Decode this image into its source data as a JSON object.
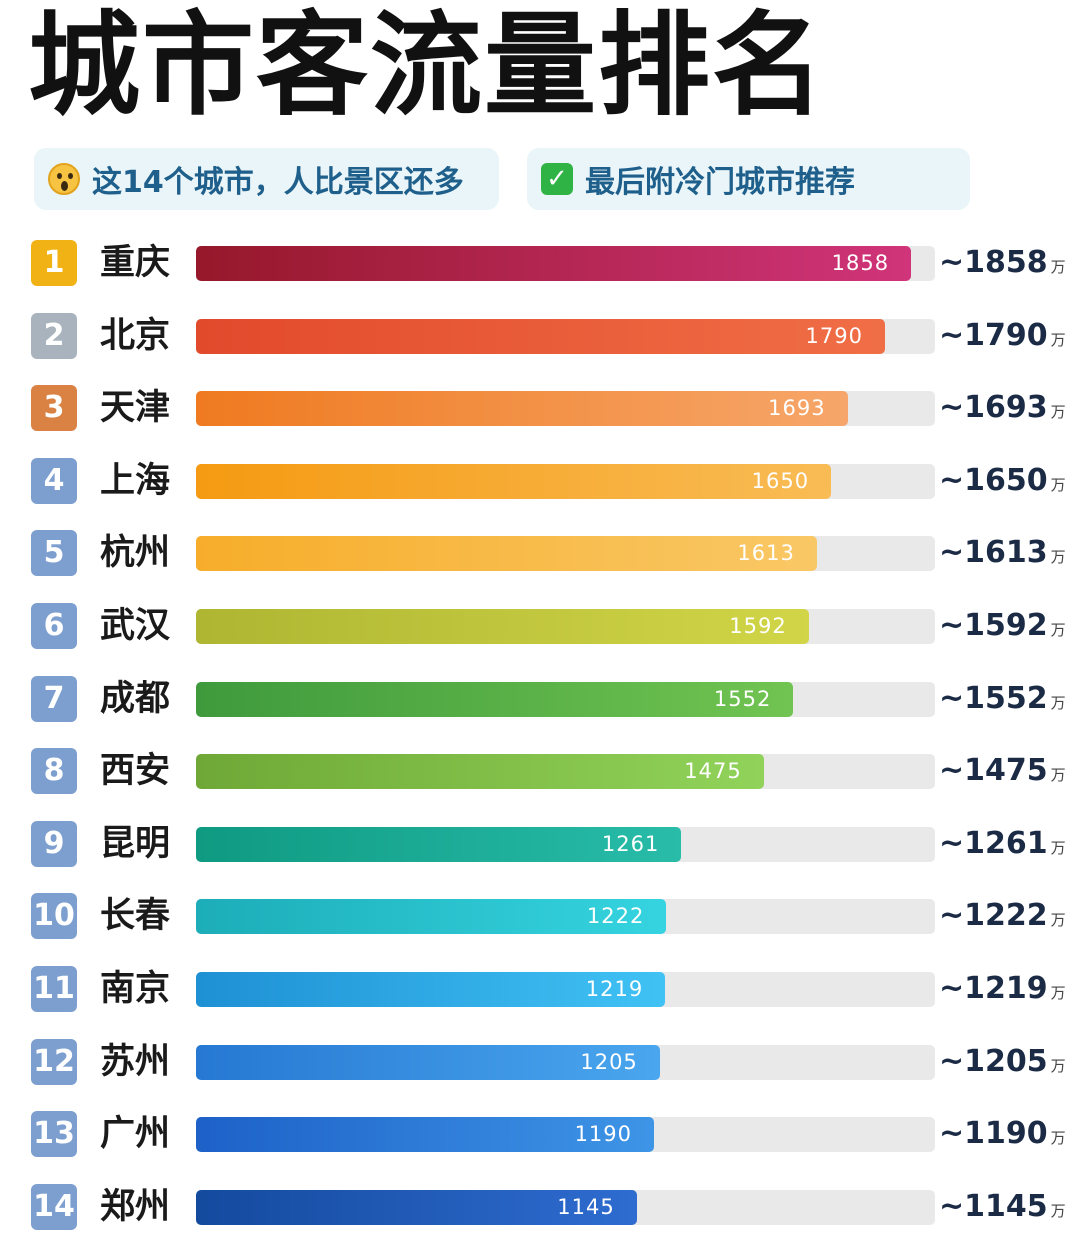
{
  "title": "城市客流量排名",
  "tags": [
    {
      "icon": "scream-emoji-icon",
      "text": "这14个城市，人比景区还多"
    },
    {
      "icon": "check-mark-icon",
      "text": "最后附冷门城市推荐"
    }
  ],
  "chart_data": {
    "type": "bar",
    "title": "城市客流量排名",
    "unit": "万",
    "value_prefix": "~",
    "xlim": [
      0,
      1920
    ],
    "categories": [
      "重庆",
      "北京",
      "天津",
      "上海",
      "杭州",
      "武汉",
      "成都",
      "西安",
      "昆明",
      "长春",
      "南京",
      "苏州",
      "广州",
      "郑州"
    ],
    "ranks": [
      "1",
      "2",
      "3",
      "4",
      "5",
      "6",
      "7",
      "8",
      "9",
      "10",
      "11",
      "12",
      "13",
      "14"
    ],
    "series": [
      {
        "values": [
          1858,
          1790,
          1693,
          1650,
          1613,
          1592,
          1552,
          1475,
          1261,
          1222,
          1219,
          1205,
          1190,
          1145
        ]
      }
    ],
    "bar_colors": [
      [
        "#96182a",
        "#d0347a"
      ],
      [
        "#e24a2c",
        "#f06e46"
      ],
      [
        "#ef7a20",
        "#f6a66a"
      ],
      [
        "#f59a12",
        "#f9bc55"
      ],
      [
        "#f7ad2a",
        "#f9c866"
      ],
      [
        "#aeb632",
        "#d1d547"
      ],
      [
        "#3e9a3c",
        "#71c451"
      ],
      [
        "#6fa836",
        "#91d35a"
      ],
      [
        "#0f9a82",
        "#28bca9"
      ],
      [
        "#1cadb8",
        "#35d4e0"
      ],
      [
        "#1e90d4",
        "#40c2f4"
      ],
      [
        "#2678d2",
        "#4aa6ee"
      ],
      [
        "#1d61c8",
        "#3e95e6"
      ],
      [
        "#144a9e",
        "#2e6cd0"
      ]
    ],
    "rank_colors": [
      "#f1b216",
      "#a8b3bd",
      "#d98244",
      "#7d9fcf",
      "#7d9fcf",
      "#7d9fcf",
      "#7d9fcf",
      "#7d9fcf",
      "#7d9fcf",
      "#7d9fcf",
      "#7d9fcf",
      "#7d9fcf",
      "#7d9fcf",
      "#7d9fcf"
    ]
  }
}
